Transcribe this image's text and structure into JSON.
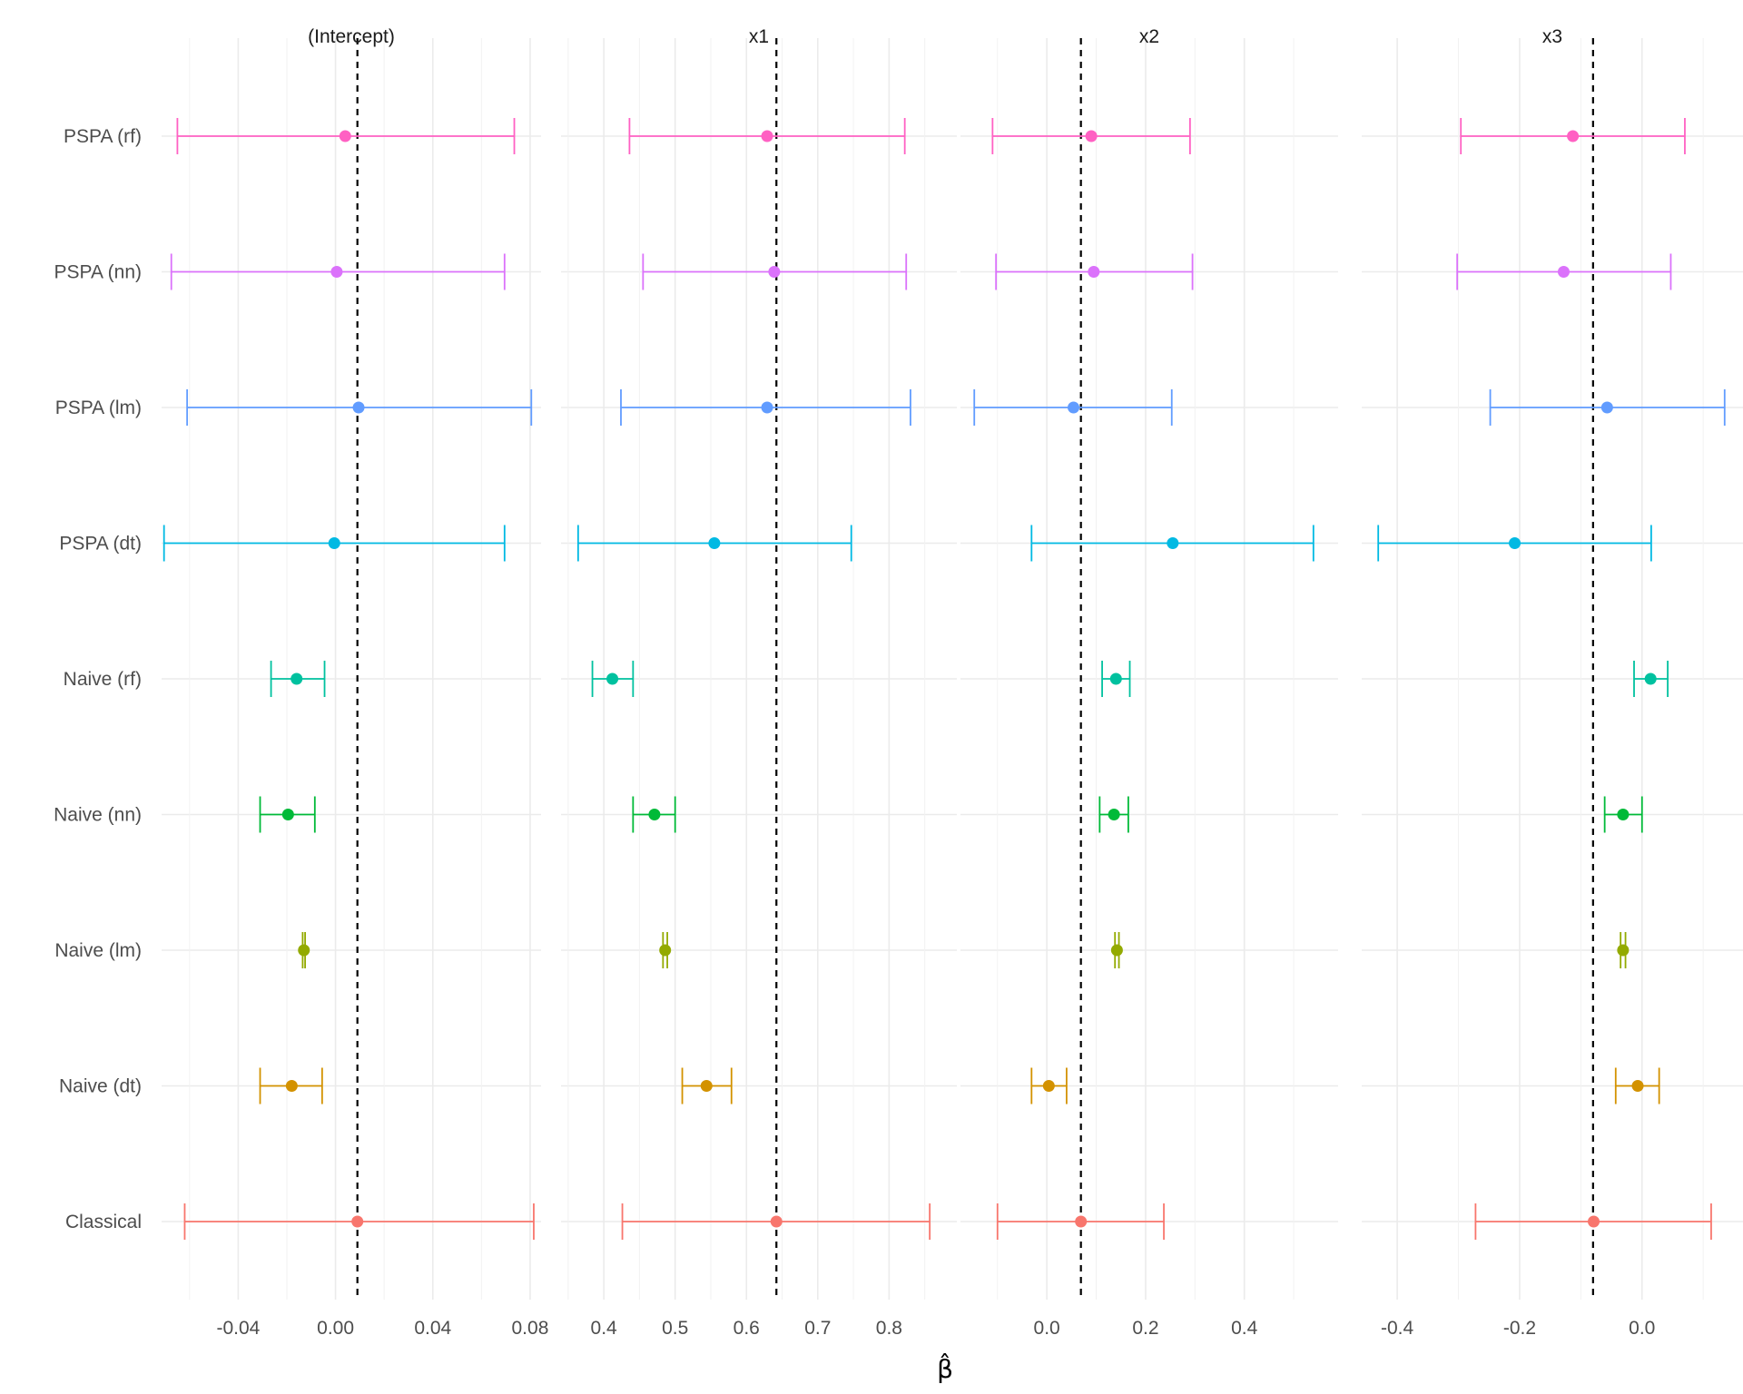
{
  "chart_data": {
    "type": "forest",
    "title": "",
    "xlabel": "β̂",
    "ylabel": "",
    "methods": [
      "PSPA (rf)",
      "PSPA (nn)",
      "PSPA (lm)",
      "PSPA (dt)",
      "Naive (rf)",
      "Naive (nn)",
      "Naive (lm)",
      "Naive (dt)",
      "Classical"
    ],
    "colors": {
      "PSPA (rf)": "#FF61C3",
      "PSPA (nn)": "#DB72FB",
      "PSPA (lm)": "#619CFF",
      "PSPA (dt)": "#00B9E3",
      "Naive (rf)": "#00C19F",
      "Naive (nn)": "#00BA38",
      "Naive (lm)": "#93AA00",
      "Naive (dt)": "#D39200",
      "Classical": "#F8766D"
    },
    "reference_line_color": "#000000",
    "panels": [
      {
        "name": "(Intercept)",
        "xlim": [
          -0.0715,
          0.0845
        ],
        "ticks": [
          -0.04,
          0.0,
          0.04,
          0.08
        ],
        "tick_labels": [
          "-0.04",
          "0.00",
          "0.04",
          "0.08"
        ],
        "reference": 0.009,
        "estimates": [
          {
            "method": "PSPA (rf)",
            "est": 0.004,
            "lo": -0.065,
            "hi": 0.0735
          },
          {
            "method": "PSPA (nn)",
            "est": 0.0005,
            "lo": -0.0675,
            "hi": 0.0695
          },
          {
            "method": "PSPA (lm)",
            "est": 0.0095,
            "lo": -0.061,
            "hi": 0.0805
          },
          {
            "method": "PSPA (dt)",
            "est": -0.0005,
            "lo": -0.0705,
            "hi": 0.0695
          },
          {
            "method": "Naive (rf)",
            "est": -0.016,
            "lo": -0.0265,
            "hi": -0.0045
          },
          {
            "method": "Naive (nn)",
            "est": -0.0195,
            "lo": -0.031,
            "hi": -0.0085
          },
          {
            "method": "Naive (lm)",
            "est": -0.013,
            "lo": -0.0135,
            "hi": -0.0125
          },
          {
            "method": "Naive (dt)",
            "est": -0.018,
            "lo": -0.031,
            "hi": -0.0055
          },
          {
            "method": "Classical",
            "est": 0.009,
            "lo": -0.062,
            "hi": 0.0815
          }
        ]
      },
      {
        "name": "x1",
        "xlim": [
          0.34,
          0.895
        ],
        "ticks": [
          0.4,
          0.5,
          0.6,
          0.7,
          0.8
        ],
        "tick_labels": [
          "0.4",
          "0.5",
          "0.6",
          "0.7",
          "0.8"
        ],
        "reference": 0.642,
        "estimates": [
          {
            "method": "PSPA (rf)",
            "est": 0.629,
            "lo": 0.436,
            "hi": 0.822
          },
          {
            "method": "PSPA (nn)",
            "est": 0.639,
            "lo": 0.455,
            "hi": 0.824
          },
          {
            "method": "PSPA (lm)",
            "est": 0.629,
            "lo": 0.424,
            "hi": 0.83
          },
          {
            "method": "PSPA (dt)",
            "est": 0.555,
            "lo": 0.364,
            "hi": 0.747
          },
          {
            "method": "Naive (rf)",
            "est": 0.412,
            "lo": 0.384,
            "hi": 0.441
          },
          {
            "method": "Naive (nn)",
            "est": 0.471,
            "lo": 0.441,
            "hi": 0.5
          },
          {
            "method": "Naive (lm)",
            "est": 0.486,
            "lo": 0.483,
            "hi": 0.489
          },
          {
            "method": "Naive (dt)",
            "est": 0.544,
            "lo": 0.51,
            "hi": 0.579
          },
          {
            "method": "Classical",
            "est": 0.642,
            "lo": 0.426,
            "hi": 0.857
          }
        ]
      },
      {
        "name": "x2",
        "xlim": [
          -0.175,
          0.59
        ],
        "ticks": [
          0.0,
          0.2,
          0.4
        ],
        "tick_labels": [
          "0.0",
          "0.2",
          "0.4"
        ],
        "reference": 0.069,
        "estimates": [
          {
            "method": "PSPA (rf)",
            "est": 0.09,
            "lo": -0.11,
            "hi": 0.29
          },
          {
            "method": "PSPA (nn)",
            "est": 0.095,
            "lo": -0.103,
            "hi": 0.295
          },
          {
            "method": "PSPA (lm)",
            "est": 0.054,
            "lo": -0.147,
            "hi": 0.253
          },
          {
            "method": "PSPA (dt)",
            "est": 0.255,
            "lo": -0.031,
            "hi": 0.54
          },
          {
            "method": "Naive (rf)",
            "est": 0.14,
            "lo": 0.112,
            "hi": 0.168
          },
          {
            "method": "Naive (nn)",
            "est": 0.136,
            "lo": 0.107,
            "hi": 0.165
          },
          {
            "method": "Naive (lm)",
            "est": 0.142,
            "lo": 0.138,
            "hi": 0.146
          },
          {
            "method": "Naive (dt)",
            "est": 0.004,
            "lo": -0.031,
            "hi": 0.04
          },
          {
            "method": "Classical",
            "est": 0.069,
            "lo": -0.1,
            "hi": 0.237
          }
        ]
      },
      {
        "name": "x3",
        "xlim": [
          -0.458,
          0.165
        ],
        "ticks": [
          -0.4,
          -0.2,
          0.0
        ],
        "tick_labels": [
          "-0.4",
          "-0.2",
          "0.0"
        ],
        "reference": -0.08,
        "estimates": [
          {
            "method": "PSPA (rf)",
            "est": -0.113,
            "lo": -0.296,
            "hi": 0.07
          },
          {
            "method": "PSPA (nn)",
            "est": -0.128,
            "lo": -0.302,
            "hi": 0.047
          },
          {
            "method": "PSPA (lm)",
            "est": -0.057,
            "lo": -0.248,
            "hi": 0.135
          },
          {
            "method": "PSPA (dt)",
            "est": -0.208,
            "lo": -0.431,
            "hi": 0.015
          },
          {
            "method": "Naive (rf)",
            "est": 0.014,
            "lo": -0.013,
            "hi": 0.042
          },
          {
            "method": "Naive (nn)",
            "est": -0.031,
            "lo": -0.061,
            "hi": 0.0
          },
          {
            "method": "Naive (lm)",
            "est": -0.031,
            "lo": -0.035,
            "hi": -0.027
          },
          {
            "method": "Naive (dt)",
            "est": -0.007,
            "lo": -0.043,
            "hi": 0.028
          },
          {
            "method": "Classical",
            "est": -0.079,
            "lo": -0.272,
            "hi": 0.113
          }
        ]
      }
    ]
  }
}
